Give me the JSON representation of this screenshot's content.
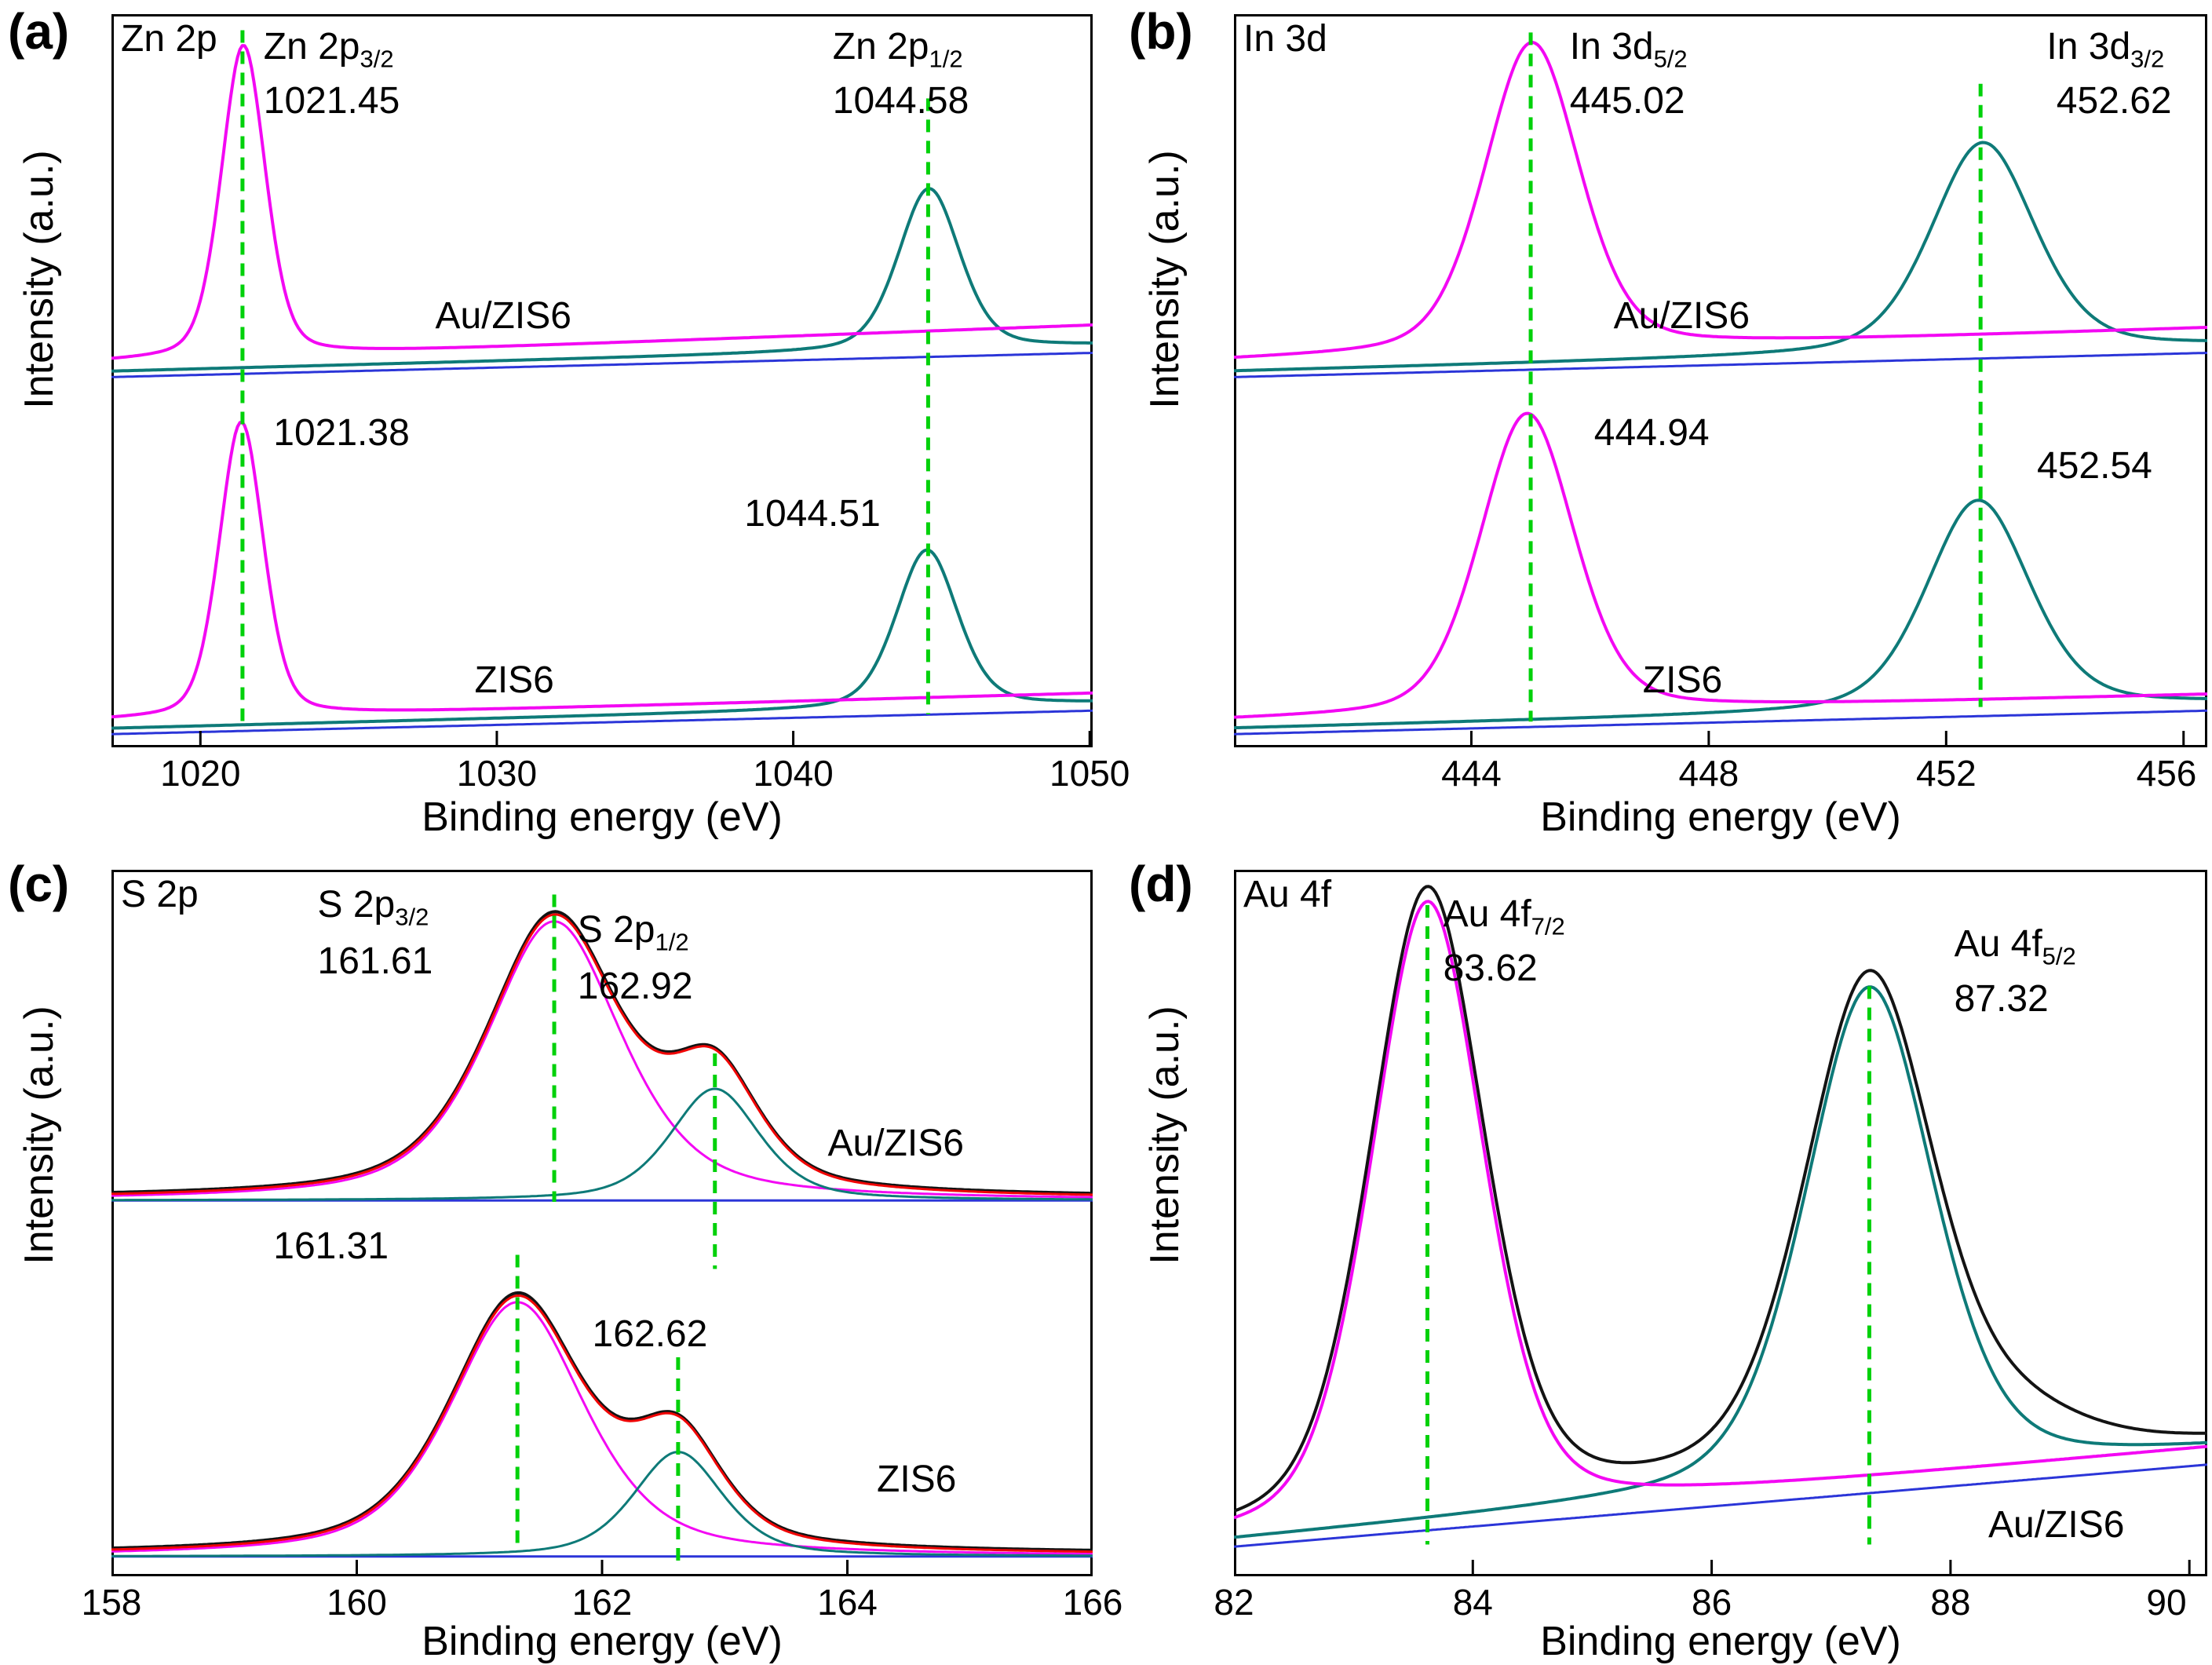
{
  "figure_title": "",
  "colors": {
    "magenta": "#f308f3",
    "teal": "#0e7a78",
    "red": "#f00505",
    "black": "#131313",
    "blue": "#2b35d8",
    "guide": "#00d10a"
  },
  "chart_data": [
    {
      "id": "a",
      "letter": "(a)",
      "type": "line",
      "corner_label": "Zn 2p",
      "xlabel": "Binding energy (eV)",
      "ylabel": "Intensity (a.u.)",
      "xmin": 1017,
      "xmax": 1050.1,
      "xticks": [
        1020,
        1030,
        1040,
        1050
      ],
      "samples": [
        "Au/ZIS6",
        "ZIS6"
      ],
      "peaks": [
        {
          "sample": "Au/ZIS6",
          "assignment": "Zn 2p3/2",
          "binding_energy_eV": 1021.45
        },
        {
          "sample": "Au/ZIS6",
          "assignment": "Zn 2p1/2",
          "binding_energy_eV": 1044.58
        },
        {
          "sample": "ZIS6",
          "assignment": "Zn 2p3/2",
          "binding_energy_eV": 1021.38
        },
        {
          "sample": "ZIS6",
          "assignment": "Zn 2p1/2",
          "binding_energy_eV": 1044.51
        }
      ],
      "curves": [
        {
          "color": "blue",
          "w": 3,
          "base": [
            0.495,
            0.462
          ],
          "peaks": []
        },
        {
          "color": "teal",
          "w": 4,
          "base": [
            0.487,
            0.452
          ],
          "peaks": [
            {
              "c": 1044.58,
              "s": 1.05,
              "a": 0.22,
              "eta": 0.35
            }
          ]
        },
        {
          "color": "magenta",
          "w": 4,
          "base": [
            0.474,
            0.424
          ],
          "peaks": [
            {
              "c": 1021.45,
              "s": 0.75,
              "a": 0.425,
              "eta": 0.3
            }
          ]
        },
        {
          "color": "blue",
          "w": 3,
          "base": [
            0.982,
            0.95
          ],
          "peaks": []
        },
        {
          "color": "teal",
          "w": 4,
          "base": [
            0.974,
            0.94
          ],
          "peaks": [
            {
              "c": 1044.51,
              "s": 1.05,
              "a": 0.215,
              "eta": 0.35
            }
          ]
        },
        {
          "color": "magenta",
          "w": 4,
          "base": [
            0.963,
            0.926
          ],
          "peaks": [
            {
              "c": 1021.38,
              "s": 0.75,
              "a": 0.402,
              "eta": 0.3
            }
          ]
        }
      ],
      "guides": [
        {
          "x": 1021.42,
          "y1": 0.022,
          "y2": 0.975
        },
        {
          "x": 1044.55,
          "y1": 0.115,
          "y2": 0.955
        }
      ],
      "annotations": [
        {
          "x": 0.155,
          "y": 0.018,
          "main": "Zn 2p",
          "sub": "3/2"
        },
        {
          "x": 0.155,
          "y": 0.092,
          "main": "1021.45"
        },
        {
          "x": 0.735,
          "y": 0.018,
          "main": "Zn 2p",
          "sub": "1/2"
        },
        {
          "x": 0.735,
          "y": 0.092,
          "main": "1044.58"
        },
        {
          "x": 0.33,
          "y": 0.385,
          "main": "Au/ZIS6"
        },
        {
          "x": 0.165,
          "y": 0.545,
          "main": "1021.38"
        },
        {
          "x": 0.645,
          "y": 0.655,
          "main": "1044.51"
        },
        {
          "x": 0.37,
          "y": 0.882,
          "main": "ZIS6"
        }
      ]
    },
    {
      "id": "b",
      "letter": "(b)",
      "type": "line",
      "corner_label": "In 3d",
      "xlabel": "Binding energy (eV)",
      "ylabel": "Intensity (a.u.)",
      "xmin": 440,
      "xmax": 456.4,
      "xticks": [
        444,
        448,
        452,
        456
      ],
      "samples": [
        "Au/ZIS6",
        "ZIS6"
      ],
      "peaks": [
        {
          "sample": "Au/ZIS6",
          "assignment": "In 3d5/2",
          "binding_energy_eV": 445.02
        },
        {
          "sample": "Au/ZIS6",
          "assignment": "In 3d3/2",
          "binding_energy_eV": 452.62
        },
        {
          "sample": "ZIS6",
          "assignment": "In 3d5/2",
          "binding_energy_eV": 444.94
        },
        {
          "sample": "ZIS6",
          "assignment": "In 3d3/2",
          "binding_energy_eV": 452.54
        }
      ],
      "curves": [
        {
          "color": "blue",
          "w": 3,
          "base": [
            0.495,
            0.462
          ],
          "peaks": []
        },
        {
          "color": "teal",
          "w": 4,
          "base": [
            0.487,
            0.452
          ],
          "peaks": [
            {
              "c": 452.62,
              "s": 0.88,
              "a": 0.285,
              "eta": 0.35
            }
          ]
        },
        {
          "color": "magenta",
          "w": 4,
          "base": [
            0.472,
            0.428
          ],
          "peaks": [
            {
              "c": 445.02,
              "s": 0.8,
              "a": 0.42,
              "eta": 0.3
            }
          ]
        },
        {
          "color": "blue",
          "w": 3,
          "base": [
            0.982,
            0.95
          ],
          "peaks": []
        },
        {
          "color": "teal",
          "w": 4,
          "base": [
            0.974,
            0.94
          ],
          "peaks": [
            {
              "c": 452.54,
              "s": 0.88,
              "a": 0.285,
              "eta": 0.35
            }
          ]
        },
        {
          "color": "magenta",
          "w": 4,
          "base": [
            0.963,
            0.928
          ],
          "peaks": [
            {
              "c": 444.94,
              "s": 0.8,
              "a": 0.408,
              "eta": 0.3
            }
          ]
        }
      ],
      "guides": [
        {
          "x": 445.0,
          "y1": 0.025,
          "y2": 0.965
        },
        {
          "x": 452.58,
          "y1": 0.095,
          "y2": 0.945
        }
      ],
      "annotations": [
        {
          "x": 0.345,
          "y": 0.018,
          "main": "In 3d",
          "sub": "5/2"
        },
        {
          "x": 0.345,
          "y": 0.092,
          "main": "445.02"
        },
        {
          "x": 0.835,
          "y": 0.018,
          "main": "In 3d",
          "sub": "3/2"
        },
        {
          "x": 0.845,
          "y": 0.092,
          "main": "452.62"
        },
        {
          "x": 0.39,
          "y": 0.385,
          "main": "Au/ZIS6"
        },
        {
          "x": 0.37,
          "y": 0.545,
          "main": "444.94"
        },
        {
          "x": 0.825,
          "y": 0.59,
          "main": "452.54"
        },
        {
          "x": 0.42,
          "y": 0.882,
          "main": "ZIS6"
        }
      ]
    },
    {
      "id": "c",
      "letter": "(c)",
      "type": "line",
      "corner_label": "S 2p",
      "xlabel": "Binding energy (eV)",
      "ylabel": "Intensity (a.u.)",
      "xmin": 158,
      "xmax": 166,
      "xticks": [
        158,
        160,
        162,
        164,
        166
      ],
      "samples": [
        "Au/ZIS6",
        "ZIS6"
      ],
      "peaks": [
        {
          "sample": "Au/ZIS6",
          "assignment": "S 2p3/2",
          "binding_energy_eV": 161.61
        },
        {
          "sample": "Au/ZIS6",
          "assignment": "S 2p1/2",
          "binding_energy_eV": 162.92
        },
        {
          "sample": "ZIS6",
          "assignment": "S 2p3/2",
          "binding_energy_eV": 161.31
        },
        {
          "sample": "ZIS6",
          "assignment": "S 2p1/2",
          "binding_energy_eV": 162.62
        }
      ],
      "curves": [
        {
          "color": "blue",
          "w": 3,
          "base": [
            0.468,
            0.468
          ],
          "peaks": []
        },
        {
          "color": "magenta",
          "w": 3,
          "base": [
            0.468,
            0.468
          ],
          "peaks": [
            {
              "c": 161.61,
              "s": 0.56,
              "a": 0.395,
              "eta": 0.55
            }
          ]
        },
        {
          "color": "teal",
          "w": 3,
          "base": [
            0.468,
            0.468
          ],
          "peaks": [
            {
              "c": 162.92,
              "s": 0.37,
              "a": 0.158,
              "eta": 0.5
            }
          ]
        },
        {
          "color": "black",
          "w": 4,
          "base": [
            0.464,
            0.464
          ],
          "peaks": [
            {
              "c": 161.61,
              "s": 0.56,
              "a": 0.397,
              "eta": 0.55
            },
            {
              "c": 162.92,
              "s": 0.37,
              "a": 0.158,
              "eta": 0.5
            }
          ]
        },
        {
          "color": "red",
          "w": 3,
          "base": [
            0.466,
            0.466
          ],
          "peaks": [
            {
              "c": 161.61,
              "s": 0.56,
              "a": 0.395,
              "eta": 0.55
            },
            {
              "c": 162.92,
              "s": 0.37,
              "a": 0.158,
              "eta": 0.5
            }
          ]
        },
        {
          "color": "blue",
          "w": 3,
          "base": [
            0.972,
            0.972
          ],
          "peaks": []
        },
        {
          "color": "magenta",
          "w": 3,
          "base": [
            0.972,
            0.972
          ],
          "peaks": [
            {
              "c": 161.31,
              "s": 0.56,
              "a": 0.36,
              "eta": 0.55
            }
          ]
        },
        {
          "color": "teal",
          "w": 3,
          "base": [
            0.972,
            0.972
          ],
          "peaks": [
            {
              "c": 162.62,
              "s": 0.37,
              "a": 0.148,
              "eta": 0.5
            }
          ]
        },
        {
          "color": "black",
          "w": 4,
          "base": [
            0.968,
            0.968
          ],
          "peaks": [
            {
              "c": 161.31,
              "s": 0.56,
              "a": 0.362,
              "eta": 0.55
            },
            {
              "c": 162.62,
              "s": 0.37,
              "a": 0.148,
              "eta": 0.5
            }
          ]
        },
        {
          "color": "red",
          "w": 3,
          "base": [
            0.97,
            0.97
          ],
          "peaks": [
            {
              "c": 161.31,
              "s": 0.56,
              "a": 0.36,
              "eta": 0.55
            },
            {
              "c": 162.62,
              "s": 0.37,
              "a": 0.148,
              "eta": 0.5
            }
          ]
        }
      ],
      "guides": [
        {
          "x": 161.61,
          "y1": 0.035,
          "y2": 0.47
        },
        {
          "x": 162.92,
          "y1": 0.26,
          "y2": 0.565
        },
        {
          "x": 161.31,
          "y1": 0.545,
          "y2": 0.965
        },
        {
          "x": 162.62,
          "y1": 0.69,
          "y2": 0.985
        }
      ],
      "annotations": [
        {
          "x": 0.21,
          "y": 0.022,
          "main": "S 2p",
          "sub": "3/2"
        },
        {
          "x": 0.21,
          "y": 0.102,
          "main": "161.61"
        },
        {
          "x": 0.475,
          "y": 0.058,
          "main": "S 2p",
          "sub": "1/2"
        },
        {
          "x": 0.475,
          "y": 0.138,
          "main": "162.92"
        },
        {
          "x": 0.73,
          "y": 0.36,
          "main": "Au/ZIS6"
        },
        {
          "x": 0.165,
          "y": 0.505,
          "main": "161.31"
        },
        {
          "x": 0.49,
          "y": 0.63,
          "main": "162.62"
        },
        {
          "x": 0.78,
          "y": 0.835,
          "main": "ZIS6"
        }
      ]
    },
    {
      "id": "d",
      "letter": "(d)",
      "type": "line",
      "corner_label": "Au 4f",
      "xlabel": "Binding energy (eV)",
      "ylabel": "Intensity (a.u.)",
      "xmin": 82,
      "xmax": 90.15,
      "xticks": [
        82,
        84,
        86,
        88,
        90
      ],
      "samples": [
        "Au/ZIS6"
      ],
      "peaks": [
        {
          "sample": "Au/ZIS6",
          "assignment": "Au 4f7/2",
          "binding_energy_eV": 83.62
        },
        {
          "sample": "Au/ZIS6",
          "assignment": "Au 4f5/2",
          "binding_energy_eV": 87.32
        }
      ],
      "curves": [
        {
          "color": "blue",
          "w": 3,
          "base": [
            0.958,
            0.842
          ],
          "peaks": []
        },
        {
          "color": "teal",
          "w": 4,
          "base": [
            0.948,
            0.822
          ],
          "peaks": [
            {
              "c": 87.32,
              "s": 0.54,
              "a": 0.7,
              "eta": 0.35
            }
          ]
        },
        {
          "color": "magenta",
          "w": 4,
          "base": [
            0.945,
            0.818
          ],
          "peaks": [
            {
              "c": 83.62,
              "s": 0.47,
              "a": 0.875,
              "eta": 0.3
            }
          ]
        },
        {
          "color": "black",
          "w": 4,
          "base": [
            0.941,
            0.814
          ],
          "peaks": [
            {
              "c": 83.62,
              "s": 0.48,
              "a": 0.885,
              "eta": 0.3
            },
            {
              "c": 87.32,
              "s": 0.55,
              "a": 0.705,
              "eta": 0.35
            },
            {
              "c": 88.62,
              "s": 0.55,
              "a": 0.042,
              "eta": 0.4
            }
          ]
        }
      ],
      "guides": [
        {
          "x": 83.62,
          "y1": 0.05,
          "y2": 0.955
        },
        {
          "x": 87.32,
          "y1": 0.165,
          "y2": 0.955
        }
      ],
      "annotations": [
        {
          "x": 0.215,
          "y": 0.035,
          "main": "Au 4f",
          "sub": "7/2"
        },
        {
          "x": 0.215,
          "y": 0.112,
          "main": "83.62"
        },
        {
          "x": 0.74,
          "y": 0.078,
          "main": "Au 4f",
          "sub": "5/2"
        },
        {
          "x": 0.74,
          "y": 0.155,
          "main": "87.32"
        },
        {
          "x": 0.775,
          "y": 0.9,
          "main": "Au/ZIS6"
        }
      ]
    }
  ]
}
